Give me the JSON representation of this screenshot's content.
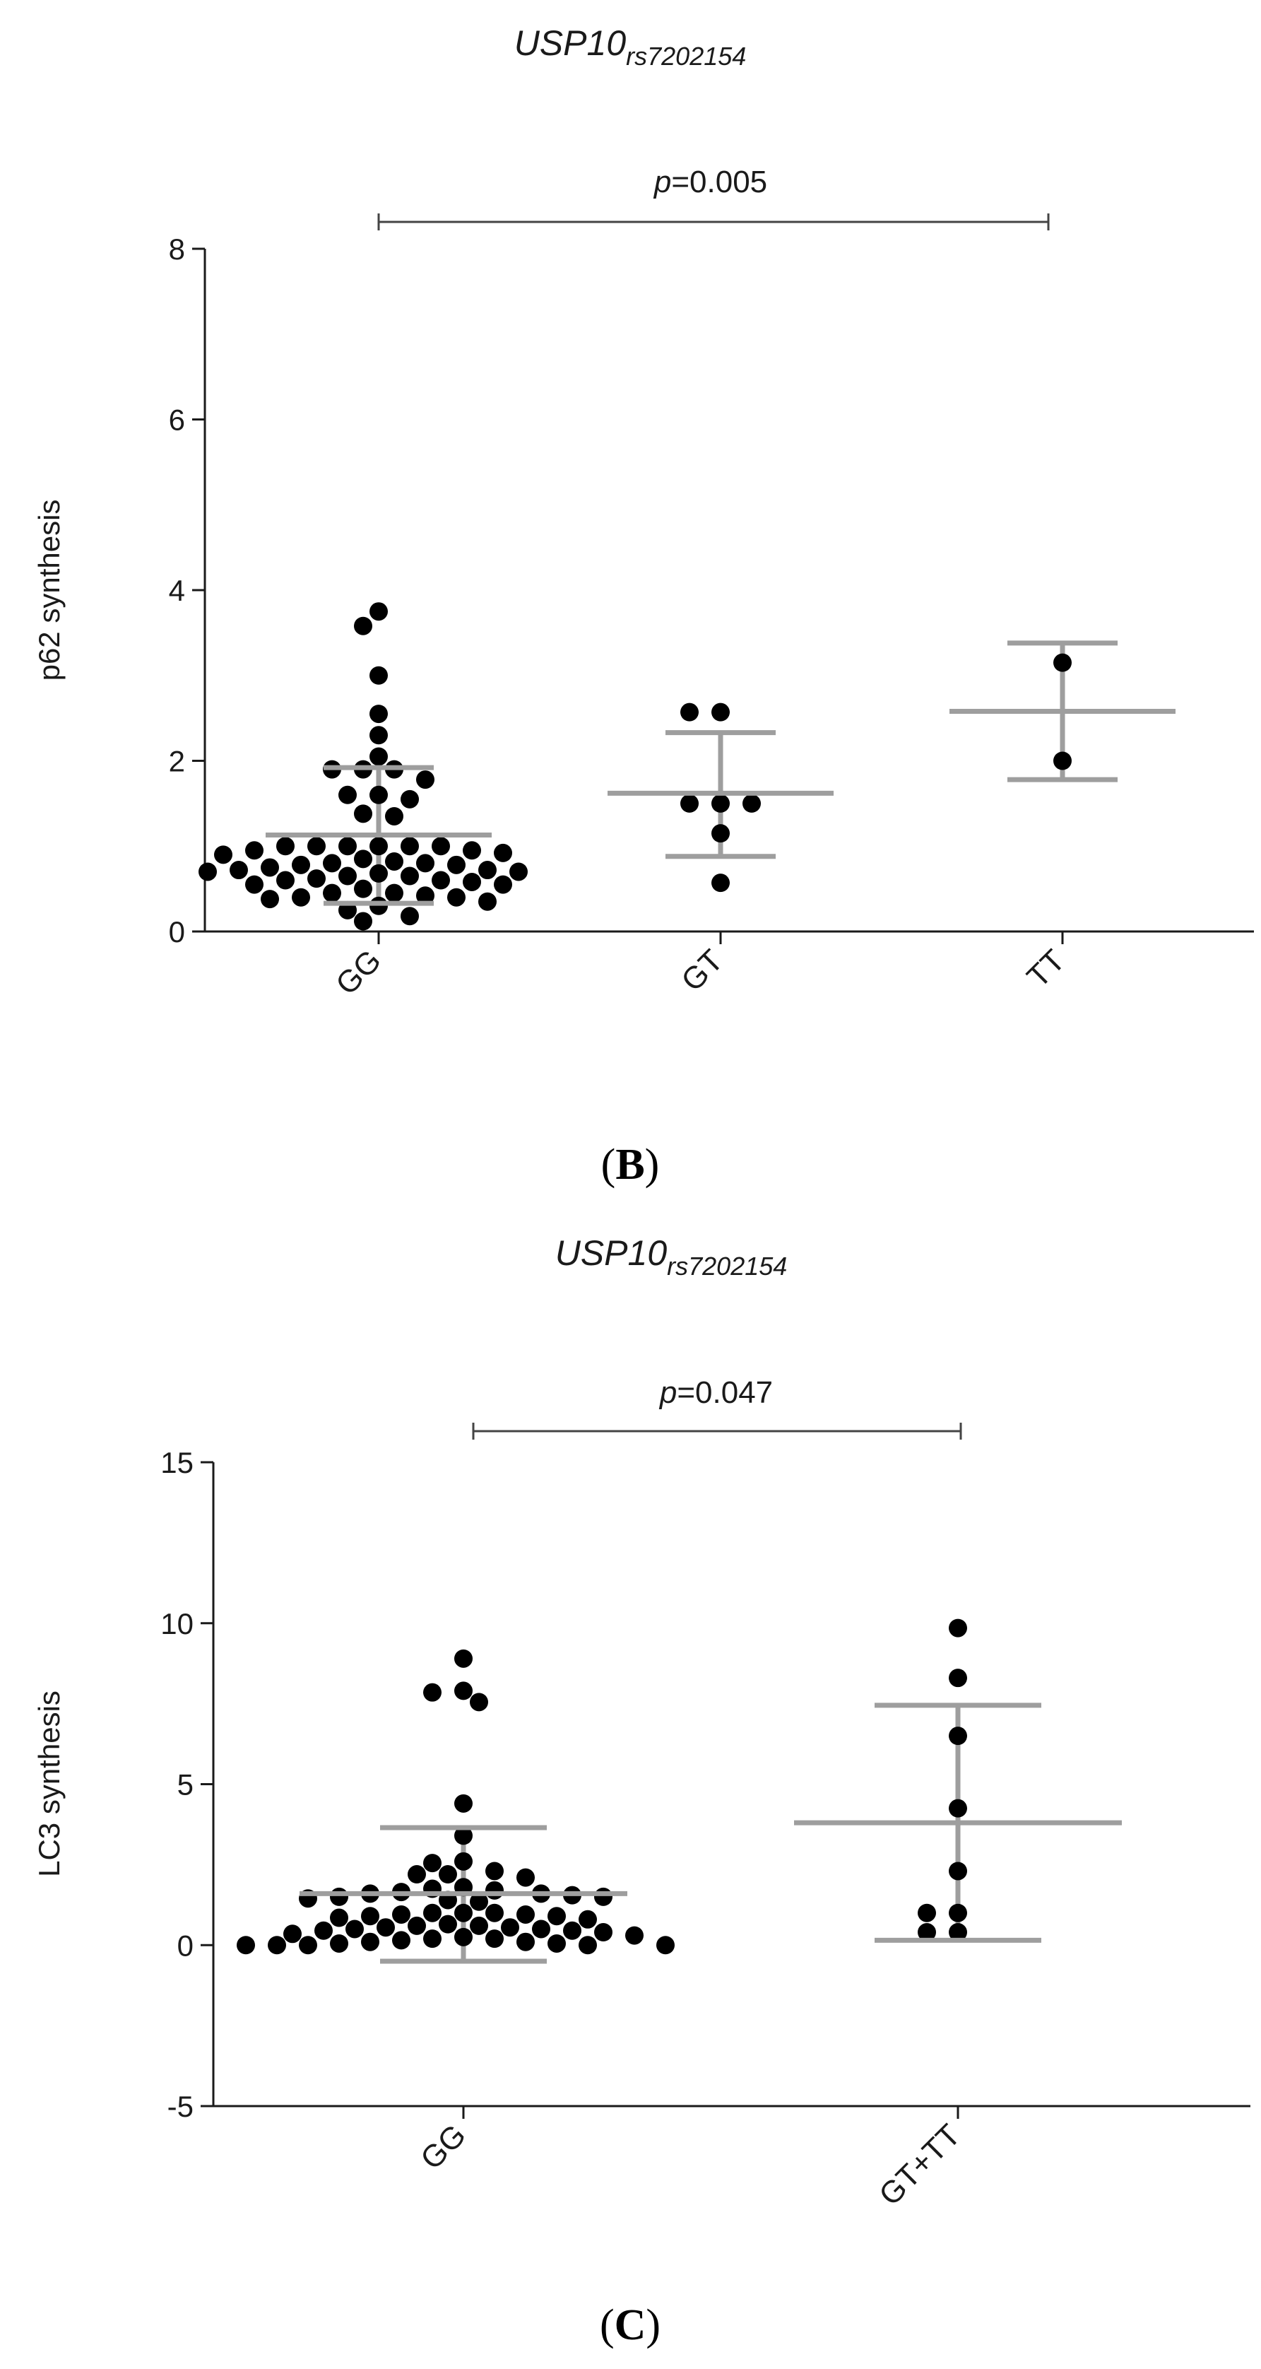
{
  "chart_data": [
    {
      "type": "scatter",
      "panel_label": "(B)",
      "panel_label_parts": {
        "open": "(",
        "letter": "B",
        "close": ")"
      },
      "title": {
        "gene": "USP10",
        "snp": "rs7202154"
      },
      "ylabel": "p62 synthesis",
      "xlabel": "",
      "ylim": [
        0,
        8
      ],
      "yticks": [
        "0",
        "2",
        "4",
        "6",
        "8"
      ],
      "categories": [
        "GG",
        "GT",
        "TT"
      ],
      "significance": {
        "p_symbol": "p",
        "p_value": "=0.005",
        "from": "GG",
        "to": "TT"
      },
      "series": [
        {
          "name": "GG",
          "mean": 1.13,
          "sd_low": 0.33,
          "sd_high": 1.92,
          "values": [
            3.75,
            3.58,
            3.0,
            2.55,
            2.3,
            2.05,
            1.9,
            1.9,
            1.9,
            1.78,
            1.6,
            1.6,
            1.55,
            1.38,
            1.35,
            1.0,
            1.0,
            1.0,
            1.0,
            1.0,
            1.0,
            0.95,
            0.95,
            0.92,
            0.9,
            0.85,
            0.82,
            0.8,
            0.8,
            0.78,
            0.78,
            0.75,
            0.72,
            0.72,
            0.7,
            0.7,
            0.68,
            0.65,
            0.65,
            0.62,
            0.6,
            0.6,
            0.58,
            0.55,
            0.55,
            0.5,
            0.45,
            0.45,
            0.42,
            0.4,
            0.4,
            0.38,
            0.35,
            0.3,
            0.25,
            0.18,
            0.12
          ]
        },
        {
          "name": "GT",
          "mean": 1.62,
          "sd_low": 0.88,
          "sd_high": 2.33,
          "values": [
            2.57,
            2.57,
            1.5,
            1.5,
            1.5,
            1.15,
            0.57
          ]
        },
        {
          "name": "TT",
          "mean": 2.58,
          "sd_low": 1.78,
          "sd_high": 3.38,
          "values": [
            3.15,
            2.0
          ]
        }
      ]
    },
    {
      "type": "scatter",
      "panel_label": "(C)",
      "panel_label_parts": {
        "open": "(",
        "letter": "C",
        "close": ")"
      },
      "title": {
        "gene": "USP10",
        "snp": "rs7202154"
      },
      "ylabel": "LC3 synthesis",
      "xlabel": "",
      "ylim": [
        -5,
        15
      ],
      "yticks": [
        "-5",
        "0",
        "5",
        "10",
        "15"
      ],
      "categories": [
        "GG",
        "GT+TT"
      ],
      "significance": {
        "p_symbol": "p",
        "p_value": "=0.047",
        "from": "GG",
        "to": "GT+TT"
      },
      "series": [
        {
          "name": "GG",
          "mean": 1.6,
          "sd_low": -0.5,
          "sd_high": 3.65,
          "values": [
            8.9,
            7.9,
            7.85,
            7.55,
            4.4,
            3.4,
            2.6,
            2.55,
            2.3,
            2.2,
            2.2,
            2.1,
            1.8,
            1.75,
            1.7,
            1.65,
            1.6,
            1.6,
            1.55,
            1.5,
            1.5,
            1.45,
            1.4,
            1.35,
            1.0,
            1.0,
            1.0,
            0.95,
            0.95,
            0.9,
            0.9,
            0.85,
            0.8,
            0.65,
            0.6,
            0.6,
            0.55,
            0.55,
            0.5,
            0.5,
            0.45,
            0.45,
            0.4,
            0.35,
            0.3,
            0.25,
            0.2,
            0.2,
            0.15,
            0.1,
            0.1,
            0.05,
            0.05,
            0.0,
            0.0,
            0.0,
            0.0,
            0.0
          ]
        },
        {
          "name": "GT+TT",
          "mean": 3.8,
          "sd_low": 0.15,
          "sd_high": 7.45,
          "values": [
            9.85,
            8.3,
            6.5,
            4.25,
            2.3,
            1.0,
            1.0,
            0.4,
            0.4
          ]
        }
      ]
    }
  ]
}
